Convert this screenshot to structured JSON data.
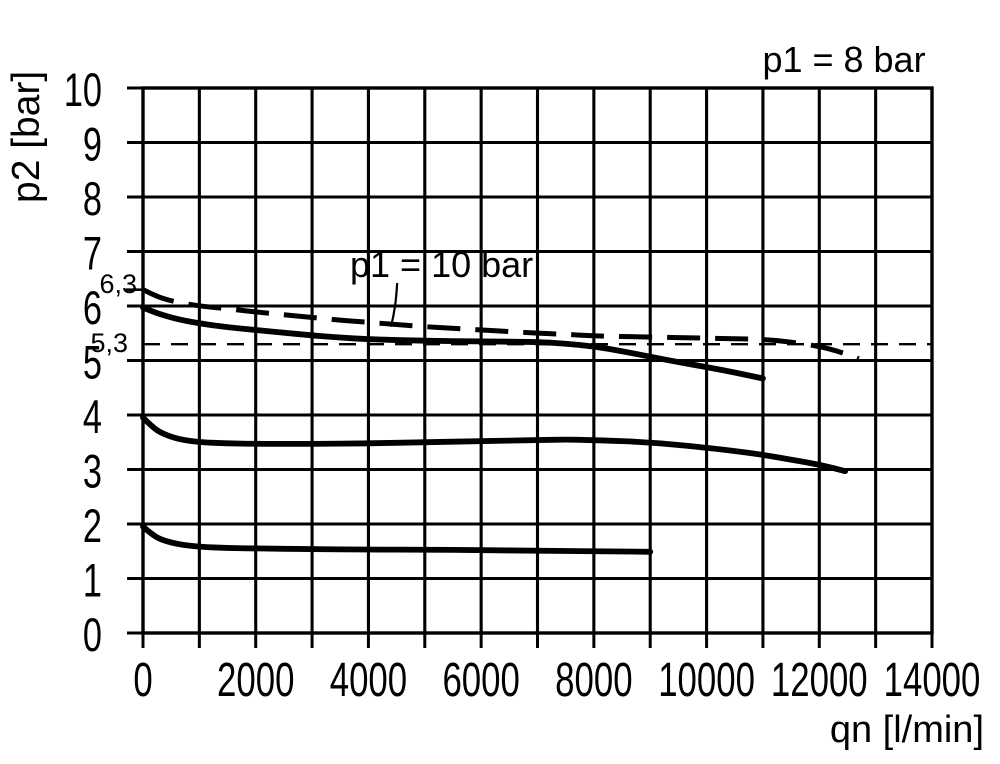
{
  "chart_data": {
    "type": "line",
    "title": "p1 = 8 bar",
    "xlabel": "qn [l/min]",
    "ylabel": "p2 [bar]",
    "xlim": [
      0,
      14000
    ],
    "ylim": [
      0,
      10
    ],
    "x_tick_values": [
      0,
      2000,
      4000,
      6000,
      8000,
      10000,
      12000,
      14000
    ],
    "x_tick_labels": [
      "0",
      "2000",
      "4000",
      "6000",
      "8000",
      "10000",
      "12000",
      "14000"
    ],
    "y_tick_values": [
      0,
      1,
      2,
      3,
      4,
      5,
      6,
      7,
      8,
      9,
      10
    ],
    "y_tick_labels": [
      "0",
      "1",
      "2",
      "3",
      "4",
      "5",
      "6",
      "7",
      "8",
      "9",
      "10"
    ],
    "grid": {
      "x_step": 1000,
      "y_step": 1
    },
    "annotation": {
      "text": "p1 = 10 bar",
      "leader_from": [
        4510,
        6.42
      ],
      "leader_to": [
        4400,
        5.62
      ]
    },
    "reference_lines": [
      {
        "label": "6,3",
        "y": 6.3,
        "style": "tick"
      },
      {
        "label": "5,3",
        "y": 5.3,
        "style": "dashed"
      }
    ],
    "series": [
      {
        "name": "p1 = 10 bar",
        "line": "dashed",
        "x": [
          0,
          300,
          600,
          1000,
          1500,
          2000,
          2500,
          3000,
          3500,
          4000,
          4500,
          5000,
          5500,
          6000,
          6500,
          7000,
          7500,
          8000,
          9000,
          10000,
          11000,
          11500,
          12000,
          12400,
          12700
        ],
        "y": [
          6.3,
          6.15,
          6.07,
          6.0,
          5.95,
          5.89,
          5.84,
          5.79,
          5.74,
          5.7,
          5.66,
          5.62,
          5.59,
          5.56,
          5.53,
          5.5,
          5.48,
          5.45,
          5.43,
          5.41,
          5.39,
          5.34,
          5.26,
          5.15,
          5.03
        ]
      },
      {
        "name": "p1 = 8 bar",
        "line": "solid",
        "x": [
          0,
          150,
          300,
          600,
          1000,
          1500,
          2000,
          2500,
          3000,
          3500,
          4000,
          5000,
          6000,
          7000,
          7500,
          8000,
          8500,
          9000,
          9500,
          10000,
          10500,
          11000
        ],
        "y": [
          5.97,
          5.91,
          5.85,
          5.76,
          5.68,
          5.61,
          5.56,
          5.51,
          5.46,
          5.42,
          5.39,
          5.36,
          5.35,
          5.34,
          5.31,
          5.26,
          5.17,
          5.07,
          4.97,
          4.88,
          4.78,
          4.67
        ]
      },
      {
        "name": "",
        "line": "solid",
        "x": [
          0,
          150,
          300,
          600,
          1000,
          1500,
          2000,
          3000,
          4000,
          5000,
          6000,
          7000,
          7500,
          8000,
          9000,
          10000,
          10500,
          11000,
          11500,
          12000,
          12460
        ],
        "y": [
          3.95,
          3.8,
          3.68,
          3.56,
          3.5,
          3.48,
          3.47,
          3.47,
          3.48,
          3.5,
          3.52,
          3.54,
          3.55,
          3.54,
          3.5,
          3.4,
          3.34,
          3.27,
          3.18,
          3.09,
          2.97
        ]
      },
      {
        "name": "",
        "line": "solid",
        "x": [
          0,
          150,
          300,
          600,
          1000,
          1500,
          2000,
          3000,
          4000,
          5000,
          6000,
          7000,
          8000,
          9000
        ],
        "y": [
          1.95,
          1.82,
          1.72,
          1.63,
          1.58,
          1.56,
          1.55,
          1.54,
          1.53,
          1.53,
          1.52,
          1.51,
          1.5,
          1.49
        ]
      }
    ],
    "colors": {
      "ink": "#000000",
      "background": "#ffffff"
    }
  }
}
